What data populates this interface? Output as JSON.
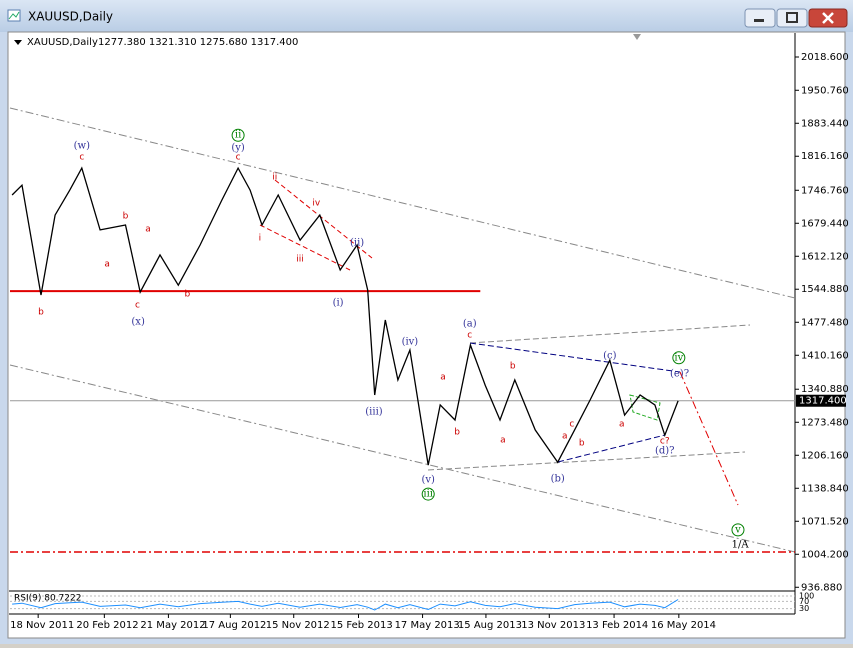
{
  "window": {
    "title": "XAUUSD,Daily"
  },
  "chart_data": {
    "type": "line",
    "title": "XAUUSD,Daily",
    "ohlc_text": "1277.380 1321.310 1275.680 1317.400",
    "x": [
      "2011-10-12",
      "2011-10-26",
      "2011-11-22",
      "2011-12-12",
      "2012-01-02",
      "2012-01-19",
      "2012-02-14",
      "2012-03-21",
      "2012-04-11",
      "2012-05-09",
      "2012-06-04",
      "2012-07-05",
      "2012-08-05",
      "2012-08-28",
      "2012-09-14",
      "2012-10-01",
      "2012-10-24",
      "2012-11-24",
      "2012-12-22",
      "2013-01-20",
      "2013-02-13",
      "2013-02-28",
      "2013-03-10",
      "2013-03-25",
      "2013-04-12",
      "2013-04-29",
      "2013-05-25",
      "2013-06-11",
      "2013-07-02",
      "2013-07-24",
      "2013-08-14",
      "2013-09-04",
      "2013-09-25",
      "2013-10-24",
      "2013-11-25",
      "2013-12-19",
      "2014-01-10",
      "2014-02-07",
      "2014-02-28",
      "2014-03-22",
      "2014-04-12",
      "2014-04-26",
      "2014-05-15"
    ],
    "values": [
      1737,
      1757,
      1533,
      1696,
      1747,
      1792,
      1666,
      1676,
      1539,
      1615,
      1553,
      1635,
      1727,
      1792,
      1747,
      1676,
      1737,
      1645,
      1696,
      1584,
      1635,
      1543,
      1329,
      1482,
      1360,
      1421,
      1186,
      1309,
      1278,
      1431,
      1349,
      1278,
      1360,
      1258,
      1192,
      1258,
      1319,
      1400,
      1288,
      1329,
      1309,
      1247,
      1317
    ],
    "color": "#000000",
    "xlim": [
      "2011-10-09",
      "2014-10-28"
    ],
    "ylim": [
      931.3,
      2063.5
    ],
    "xticks": [
      {
        "value": "2011-11-18",
        "label": "18 Nov 2011"
      },
      {
        "value": "2012-02-20",
        "label": "20 Feb 2012"
      },
      {
        "value": "2012-05-21",
        "label": "21 May 2012"
      },
      {
        "value": "2012-08-17",
        "label": "17 Aug 2012"
      },
      {
        "value": "2012-11-15",
        "label": "15 Nov 2012"
      },
      {
        "value": "2013-02-15",
        "label": "15 Feb 2013"
      },
      {
        "value": "2013-05-17",
        "label": "17 May 2013"
      },
      {
        "value": "2013-08-15",
        "label": "15 Aug 2013"
      },
      {
        "value": "2013-11-13",
        "label": "13 Nov 2013"
      },
      {
        "value": "2014-02-13",
        "label": "13 Feb 2014"
      },
      {
        "value": "2014-05-16",
        "label": "16 May 2014"
      }
    ],
    "yticks": [
      {
        "value": 2018.6,
        "label": "2018.600"
      },
      {
        "value": 1950.76,
        "label": "1950.760"
      },
      {
        "value": 1883.44,
        "label": "1883.440"
      },
      {
        "value": 1816.16,
        "label": "1816.160"
      },
      {
        "value": 1746.76,
        "label": "1746.760"
      },
      {
        "value": 1679.44,
        "label": "1679.440"
      },
      {
        "value": 1612.12,
        "label": "1612.120"
      },
      {
        "value": 1544.88,
        "label": "1544.880"
      },
      {
        "value": 1477.48,
        "label": "1477.480"
      },
      {
        "value": 1410.16,
        "label": "1410.160"
      },
      {
        "value": 1340.88,
        "label": "1340.880"
      },
      {
        "value": 1273.48,
        "label": "1273.480"
      },
      {
        "value": 1206.16,
        "label": "1206.160"
      },
      {
        "value": 1138.84,
        "label": "1138.840"
      },
      {
        "value": 1071.52,
        "label": "1071.520"
      },
      {
        "value": 1004.2,
        "label": "1004.200"
      },
      {
        "value": 936.88,
        "label": "936.880"
      }
    ],
    "last_price": {
      "value": 1317.4,
      "label": "1317.400"
    },
    "reference_lines": [
      {
        "value": 1541,
        "color": "#e00000",
        "dash": "solid",
        "x_end": "2013-08-07"
      },
      {
        "value": 1008.8,
        "color": "#e00000",
        "dash": "dashdot"
      }
    ],
    "annotations": [
      {
        "text": "(w)",
        "x": "2012-01-19",
        "y": 1837,
        "color": "#333399"
      },
      {
        "text": "c",
        "x": "2012-01-19",
        "y": 1815,
        "color": "#cc0000"
      },
      {
        "text": "b",
        "x": "2011-11-22",
        "y": 1498,
        "color": "#cc0000"
      },
      {
        "text": "a",
        "x": "2012-02-24",
        "y": 1596,
        "color": "#cc0000"
      },
      {
        "text": "b",
        "x": "2012-03-21",
        "y": 1694,
        "color": "#cc0000"
      },
      {
        "text": "a",
        "x": "2012-04-22",
        "y": 1668,
        "color": "#cc0000"
      },
      {
        "text": "c",
        "x": "2012-04-07",
        "y": 1513,
        "color": "#cc0000"
      },
      {
        "text": "(x)",
        "x": "2012-04-08",
        "y": 1478,
        "color": "#333399"
      },
      {
        "text": "b",
        "x": "2012-06-17",
        "y": 1535,
        "color": "#cc0000"
      },
      {
        "text": "ii",
        "x": "2012-08-28",
        "y": 1859,
        "color": "#008000",
        "circled": true
      },
      {
        "text": "(y)",
        "x": "2012-08-28",
        "y": 1833,
        "color": "#333399"
      },
      {
        "text": "c",
        "x": "2012-08-28",
        "y": 1815,
        "color": "#cc0000"
      },
      {
        "text": "i",
        "x": "2012-09-28",
        "y": 1649,
        "color": "#cc0000"
      },
      {
        "text": "ii",
        "x": "2012-10-19",
        "y": 1774,
        "color": "#cc0000"
      },
      {
        "text": "iii",
        "x": "2012-11-24",
        "y": 1607,
        "color": "#cc0000"
      },
      {
        "text": "iv",
        "x": "2012-12-17",
        "y": 1721,
        "color": "#cc0000"
      },
      {
        "text": "(i)",
        "x": "2013-01-17",
        "y": 1517,
        "color": "#333399"
      },
      {
        "text": "(ii)",
        "x": "2013-02-13",
        "y": 1639,
        "color": "#333399"
      },
      {
        "text": "(iii)",
        "x": "2013-03-09",
        "y": 1294,
        "color": "#333399"
      },
      {
        "text": "(iv)",
        "x": "2013-04-29",
        "y": 1437,
        "color": "#333399"
      },
      {
        "text": "(v)",
        "x": "2013-05-25",
        "y": 1156,
        "color": "#333399"
      },
      {
        "text": "iii",
        "x": "2013-05-25",
        "y": 1127,
        "color": "#008000",
        "circled": true
      },
      {
        "text": "a",
        "x": "2013-06-15",
        "y": 1366,
        "color": "#cc0000"
      },
      {
        "text": "b",
        "x": "2013-07-05",
        "y": 1254,
        "color": "#cc0000"
      },
      {
        "text": "(a)",
        "x": "2013-07-23",
        "y": 1474,
        "color": "#333399"
      },
      {
        "text": "c",
        "x": "2013-07-23",
        "y": 1451,
        "color": "#cc0000"
      },
      {
        "text": "a",
        "x": "2013-09-08",
        "y": 1237,
        "color": "#cc0000"
      },
      {
        "text": "b",
        "x": "2013-09-22",
        "y": 1388,
        "color": "#cc0000"
      },
      {
        "text": "(b)",
        "x": "2013-11-25",
        "y": 1158,
        "color": "#333399"
      },
      {
        "text": "a",
        "x": "2013-12-05",
        "y": 1245,
        "color": "#cc0000"
      },
      {
        "text": "c",
        "x": "2013-12-15",
        "y": 1270,
        "color": "#cc0000"
      },
      {
        "text": "b",
        "x": "2013-12-29",
        "y": 1231,
        "color": "#cc0000"
      },
      {
        "text": "(c)",
        "x": "2014-02-07",
        "y": 1409,
        "color": "#333399"
      },
      {
        "text": "a",
        "x": "2014-02-24",
        "y": 1270,
        "color": "#cc0000"
      },
      {
        "text": "c?",
        "x": "2014-04-26",
        "y": 1235,
        "color": "#cc0000"
      },
      {
        "text": "(d)?",
        "x": "2014-04-26",
        "y": 1215,
        "color": "#333399"
      },
      {
        "text": "iv",
        "x": "2014-05-16",
        "y": 1405,
        "color": "#008000",
        "circled": true
      },
      {
        "text": "(e)?",
        "x": "2014-05-17",
        "y": 1372,
        "color": "#333399"
      },
      {
        "text": "v",
        "x": "2014-08-08",
        "y": 1054,
        "color": "#008000",
        "circled": true
      },
      {
        "text": "1/A",
        "x": "2014-08-11",
        "y": 1023,
        "color": "#000000"
      }
    ],
    "rsi": {
      "title": "RSI(9) 80.7222",
      "ylim": [
        0,
        100
      ],
      "yticks": [
        30,
        70,
        100
      ],
      "color": "#1e90ff",
      "values": [
        55,
        60,
        35,
        58,
        62,
        66,
        42,
        50,
        35,
        55,
        40,
        58,
        65,
        70,
        55,
        42,
        60,
        38,
        55,
        36,
        52,
        38,
        22,
        55,
        35,
        52,
        25,
        55,
        45,
        68,
        48,
        40,
        58,
        38,
        30,
        52,
        60,
        66,
        40,
        55,
        48,
        35,
        80.7222
      ]
    }
  }
}
